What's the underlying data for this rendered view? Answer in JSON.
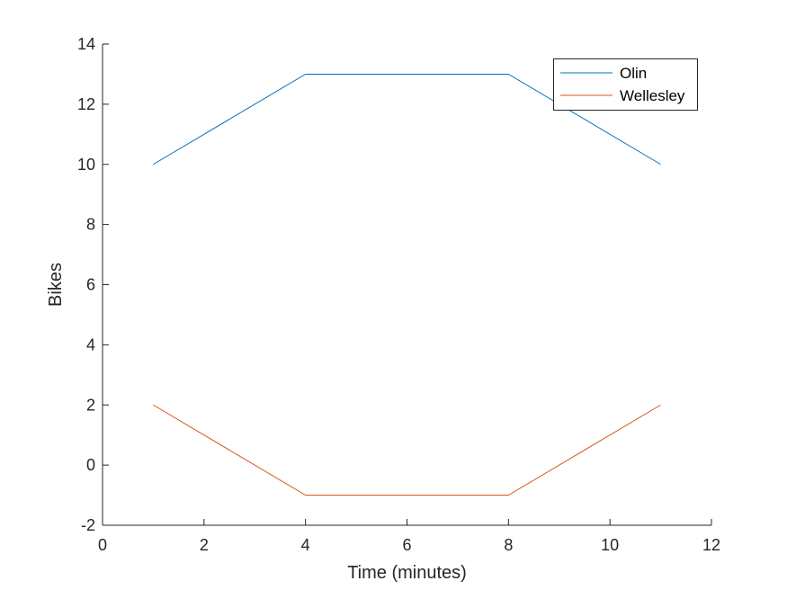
{
  "chart_data": {
    "type": "line",
    "title": "",
    "xlabel": "Time (minutes)",
    "ylabel": "Bikes",
    "xlim": [
      0,
      12
    ],
    "ylim": [
      -2,
      14
    ],
    "xticks": [
      0,
      2,
      4,
      6,
      8,
      10,
      12
    ],
    "yticks": [
      -2,
      0,
      2,
      4,
      6,
      8,
      10,
      12,
      14
    ],
    "grid": false,
    "legend_position": "top-right",
    "series": [
      {
        "name": "Olin",
        "color": "#0072BD",
        "x": [
          1,
          4,
          8,
          11
        ],
        "y": [
          10,
          13,
          13,
          10
        ]
      },
      {
        "name": "Wellesley",
        "color": "#D95319",
        "x": [
          1,
          4,
          8,
          11
        ],
        "y": [
          2,
          -1,
          -1,
          2
        ]
      }
    ]
  }
}
